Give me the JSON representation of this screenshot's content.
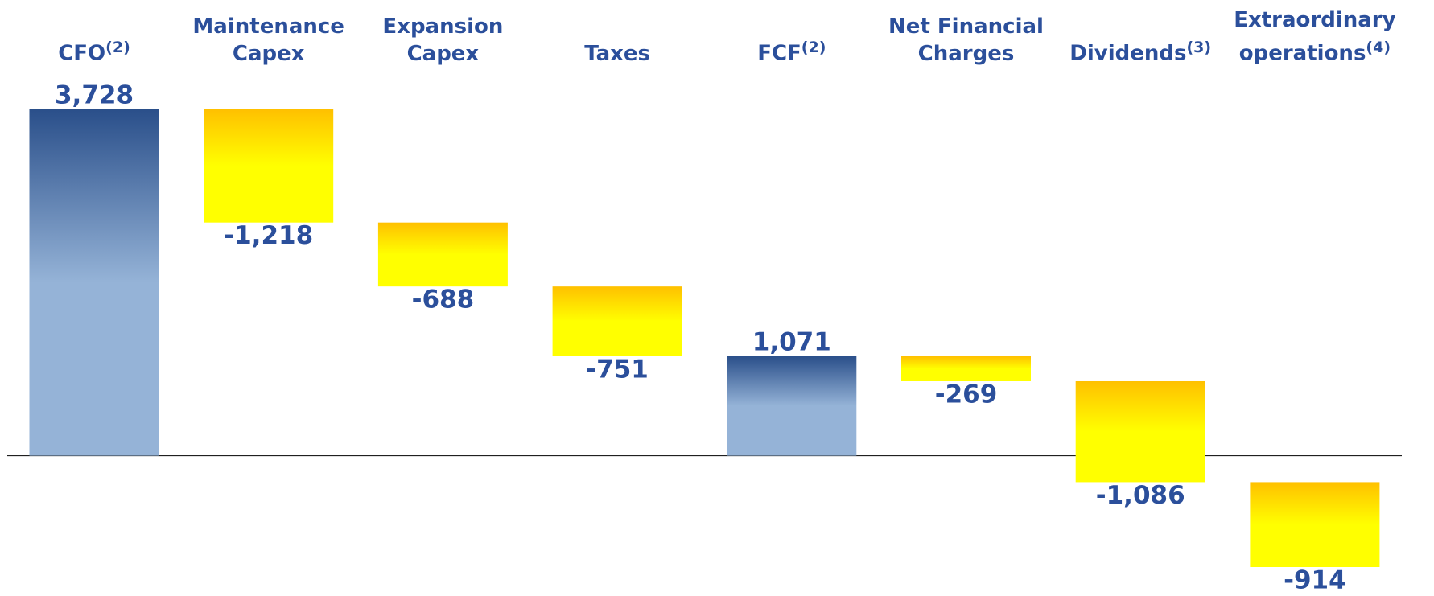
{
  "chart_data": {
    "type": "waterfall",
    "categories": [
      "CFO",
      "Maintenance Capex",
      "Expansion Capex",
      "Taxes",
      "FCF",
      "Net Financial Charges",
      "Dividends",
      "Extraordinary operations"
    ],
    "notes": [
      "(2)",
      null,
      null,
      null,
      "(2)",
      null,
      "(3)",
      "(4)"
    ],
    "values": [
      3728,
      -1218,
      -688,
      -751,
      1071,
      -269,
      -1086,
      -914
    ],
    "value_labels": [
      "3,728",
      "-1,218",
      "-688",
      "-751",
      "1,071",
      "-269",
      "-1,086",
      "-914"
    ],
    "total_categories": [
      "CFO",
      "FCF"
    ],
    "total_color": [
      "#2a4f8a",
      "#95b3d7"
    ],
    "change_color": [
      "#ffc000",
      "#ffff00"
    ],
    "label_color": "#2b4f9b"
  }
}
